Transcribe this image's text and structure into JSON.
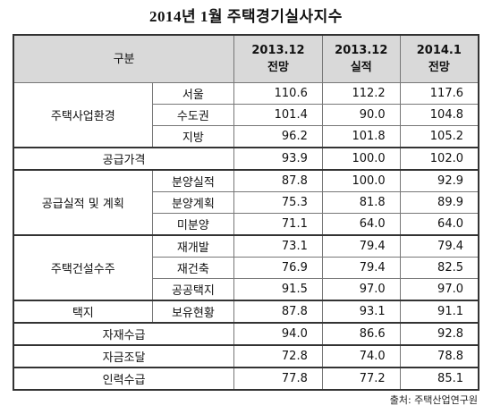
{
  "title": "2014년 1월 주택경기실사지수",
  "table": {
    "header": {
      "label": "구분",
      "columns": [
        {
          "period": "2013.12",
          "kind": "전망"
        },
        {
          "period": "2013.12",
          "kind": "실적"
        },
        {
          "period": "2014.1",
          "kind": "전망"
        }
      ]
    },
    "groups": [
      {
        "label": "주택사업환경",
        "items": [
          {
            "label": "서울",
            "values": [
              "110.6",
              "112.2",
              "117.6"
            ]
          },
          {
            "label": "수도권",
            "values": [
              "101.4",
              "90.0",
              "104.8"
            ]
          },
          {
            "label": "지방",
            "values": [
              "96.2",
              "101.8",
              "105.2"
            ]
          }
        ]
      },
      {
        "label": "공급가격",
        "values": [
          "93.9",
          "100.0",
          "102.0"
        ]
      },
      {
        "label": "공급실적 및 계획",
        "items": [
          {
            "label": "분양실적",
            "values": [
              "87.8",
              "100.0",
              "92.9"
            ]
          },
          {
            "label": "분양계획",
            "values": [
              "75.3",
              "81.8",
              "89.9"
            ]
          },
          {
            "label": "미분양",
            "values": [
              "71.1",
              "64.0",
              "64.0"
            ]
          }
        ]
      },
      {
        "label": "주택건설수주",
        "items": [
          {
            "label": "재개발",
            "values": [
              "73.1",
              "79.4",
              "79.4"
            ]
          },
          {
            "label": "재건축",
            "values": [
              "76.9",
              "79.4",
              "82.5"
            ]
          },
          {
            "label": "공공택지",
            "values": [
              "91.5",
              "97.0",
              "97.0"
            ]
          }
        ]
      },
      {
        "label": "택지",
        "items": [
          {
            "label": "보유현황",
            "values": [
              "87.8",
              "93.1",
              "91.1"
            ]
          }
        ]
      },
      {
        "label": "자재수급",
        "values": [
          "94.0",
          "86.6",
          "92.8"
        ]
      },
      {
        "label": "자금조달",
        "values": [
          "72.8",
          "74.0",
          "78.8"
        ]
      },
      {
        "label": "인력수급",
        "values": [
          "77.8",
          "77.2",
          "85.1"
        ]
      }
    ]
  },
  "source": "출처: 주택산업연구원"
}
